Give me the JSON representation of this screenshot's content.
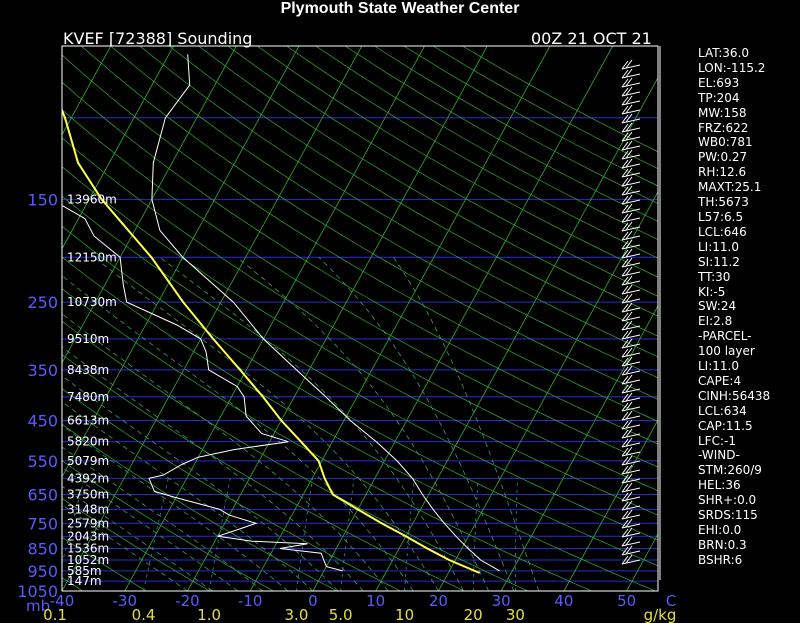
{
  "title": "Plymouth State Weather Center",
  "station": "KVEF [72388] Sounding",
  "time": "00Z 21 OCT 21",
  "stats": [
    "LAT:36.0",
    "LON:-115.2",
    "EL:693",
    "TP:204",
    "MW:158",
    "FRZ:622",
    "WB0:781",
    "PW:0.27",
    "RH:12.6",
    "MAXT:25.1",
    "TH:5673",
    "L57:6.5",
    "LCL:646",
    "LI:11.0",
    "SI:11.2",
    "TT:30",
    "KI:-5",
    "SW:24",
    "EI:2.8",
    "-PARCEL-",
    "100 layer",
    "LI:11.0",
    "CAPE:4",
    "CINH:56438",
    "LCL:634",
    "CAP:11.5",
    "LFC:-1",
    "-WIND-",
    "STM:260/9",
    "HEL:36",
    "SHR+:0.0",
    "SRDS:115",
    "EHI:0.0",
    "BRN:0.3",
    "BSHR:6"
  ],
  "chart_data": {
    "type": "line",
    "subtype": "skew-t log-p sounding",
    "colors": {
      "isobars": "#2a2ad8",
      "isotherms": "#2fae2f",
      "dry_adiabats": "#2fae2f",
      "moist_adiabats": "#3c9a6a",
      "mixing_ratio": "#2f8aa0",
      "temperature": "#ffffff",
      "dewpoint": "#ffffff",
      "parcel": "#ffff44",
      "wind": "#ffffff",
      "pressure_labels": "#5a5aff"
    },
    "pressure_labels": [
      "150",
      "250",
      "350",
      "450",
      "550",
      "650",
      "750",
      "850",
      "950",
      "1050"
    ],
    "pressure_unit": "mb",
    "height_labels": [
      {
        "p": 150,
        "label": "13960m"
      },
      {
        "p": 200,
        "label": "12150m"
      },
      {
        "p": 250,
        "label": "10730m"
      },
      {
        "p": 300,
        "label": "9510m"
      },
      {
        "p": 350,
        "label": "8438m"
      },
      {
        "p": 400,
        "label": "7480m"
      },
      {
        "p": 450,
        "label": "6613m"
      },
      {
        "p": 500,
        "label": "5820m"
      },
      {
        "p": 550,
        "label": "5079m"
      },
      {
        "p": 600,
        "label": "4392m"
      },
      {
        "p": 650,
        "label": "3750m"
      },
      {
        "p": 700,
        "label": "3148m"
      },
      {
        "p": 750,
        "label": "2579m"
      },
      {
        "p": 800,
        "label": "2043m"
      },
      {
        "p": 850,
        "label": "1536m"
      },
      {
        "p": 900,
        "label": "1052m"
      },
      {
        "p": 950,
        "label": "585m"
      },
      {
        "p": 1000,
        "label": "147m"
      }
    ],
    "temperature_ticks": [
      "-40",
      "-30",
      "-20",
      "-10",
      "0",
      "10",
      "20",
      "30",
      "40",
      "50"
    ],
    "temperature_unit": "C",
    "mixing_ratio_ticks": [
      "0.1",
      "0.4",
      "1.0",
      "3.0",
      "5.0",
      "10",
      "20",
      "30"
    ],
    "mixing_ratio_unit": "g/kg",
    "temperature_profile": [
      [
        950,
        28
      ],
      [
        900,
        24
      ],
      [
        850,
        21
      ],
      [
        800,
        18
      ],
      [
        750,
        15
      ],
      [
        700,
        12
      ],
      [
        650,
        9
      ],
      [
        600,
        6
      ],
      [
        550,
        2
      ],
      [
        500,
        -3
      ],
      [
        450,
        -9
      ],
      [
        400,
        -15
      ],
      [
        350,
        -22
      ],
      [
        300,
        -30
      ],
      [
        250,
        -38
      ],
      [
        200,
        -50
      ],
      [
        175,
        -56
      ],
      [
        150,
        -60
      ],
      [
        125,
        -63
      ],
      [
        100,
        -65
      ],
      [
        85,
        -64
      ],
      [
        73,
        -67
      ]
    ],
    "dewpoint_profile": [
      [
        950,
        3
      ],
      [
        930,
        0
      ],
      [
        900,
        -1
      ],
      [
        870,
        -2
      ],
      [
        850,
        -9
      ],
      [
        830,
        -5
      ],
      [
        820,
        -14
      ],
      [
        800,
        -20
      ],
      [
        770,
        -17
      ],
      [
        750,
        -15
      ],
      [
        720,
        -20
      ],
      [
        700,
        -22
      ],
      [
        660,
        -30
      ],
      [
        640,
        -34
      ],
      [
        600,
        -36
      ],
      [
        590,
        -34
      ],
      [
        560,
        -32
      ],
      [
        540,
        -30
      ],
      [
        520,
        -25
      ],
      [
        500,
        -17
      ],
      [
        480,
        -22
      ],
      [
        440,
        -26
      ],
      [
        400,
        -28
      ],
      [
        380,
        -30
      ],
      [
        350,
        -36
      ],
      [
        320,
        -38
      ],
      [
        300,
        -40
      ],
      [
        280,
        -45
      ],
      [
        250,
        -55
      ],
      [
        230,
        -57
      ],
      [
        200,
        -60
      ],
      [
        180,
        -66
      ],
      [
        165,
        -69
      ],
      [
        150,
        -76
      ],
      [
        125,
        -78
      ],
      [
        110,
        -83
      ],
      [
        95,
        -85
      ],
      [
        80,
        -88
      ],
      [
        73,
        -88
      ]
    ],
    "parcel_profile": [
      [
        960,
        25
      ],
      [
        900,
        19
      ],
      [
        850,
        14.5
      ],
      [
        800,
        10
      ],
      [
        750,
        5
      ],
      [
        700,
        0
      ],
      [
        650,
        -5.3
      ],
      [
        600,
        -8
      ],
      [
        550,
        -10.5
      ],
      [
        500,
        -15
      ],
      [
        450,
        -20
      ],
      [
        400,
        -25
      ],
      [
        350,
        -31
      ],
      [
        300,
        -38
      ],
      [
        250,
        -46
      ],
      [
        200,
        -55
      ],
      [
        150,
        -68
      ],
      [
        125,
        -75
      ],
      [
        100,
        -81
      ],
      [
        85,
        -86
      ],
      [
        70,
        -90
      ]
    ],
    "xlim": [
      -40,
      55
    ],
    "plim": [
      1050,
      70
    ],
    "legend": "none",
    "grid": true
  }
}
